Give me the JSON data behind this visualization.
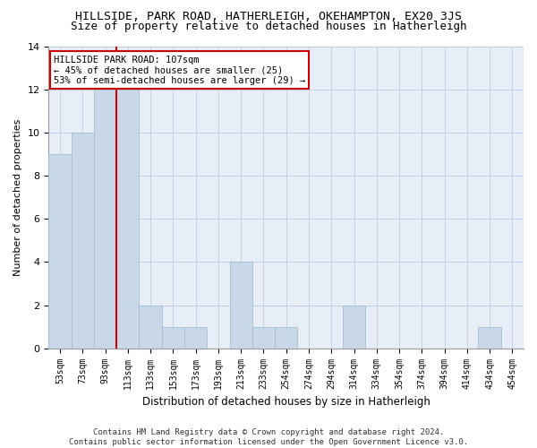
{
  "title": "HILLSIDE, PARK ROAD, HATHERLEIGH, OKEHAMPTON, EX20 3JS",
  "subtitle": "Size of property relative to detached houses in Hatherleigh",
  "xlabel": "Distribution of detached houses by size in Hatherleigh",
  "ylabel": "Number of detached properties",
  "categories": [
    "53sqm",
    "73sqm",
    "93sqm",
    "113sqm",
    "133sqm",
    "153sqm",
    "173sqm",
    "193sqm",
    "213sqm",
    "233sqm",
    "254sqm",
    "274sqm",
    "294sqm",
    "314sqm",
    "334sqm",
    "354sqm",
    "374sqm",
    "394sqm",
    "414sqm",
    "434sqm",
    "454sqm"
  ],
  "values": [
    9,
    10,
    12,
    12,
    2,
    1,
    1,
    0,
    4,
    1,
    1,
    0,
    0,
    2,
    0,
    0,
    0,
    0,
    0,
    1,
    0
  ],
  "bar_color": "#c8d8e8",
  "bar_edge_color": "#a0b8cc",
  "red_line_x": 2.5,
  "annotation_line1": "HILLSIDE PARK ROAD: 107sqm",
  "annotation_line2": "← 45% of detached houses are smaller (25)",
  "annotation_line3": "53% of semi-detached houses are larger (29) →",
  "annotation_box_color": "#ffffff",
  "annotation_box_edge": "#cc0000",
  "ylim": [
    0,
    14
  ],
  "yticks": [
    0,
    2,
    4,
    6,
    8,
    10,
    12,
    14
  ],
  "background_color": "#e8eef8",
  "footer_line1": "Contains HM Land Registry data © Crown copyright and database right 2024.",
  "footer_line2": "Contains public sector information licensed under the Open Government Licence v3.0.",
  "title_fontsize": 9.5,
  "subtitle_fontsize": 9,
  "xlabel_fontsize": 8.5,
  "ylabel_fontsize": 8,
  "tick_fontsize": 7,
  "annotation_fontsize": 7.5,
  "footer_fontsize": 6.5
}
